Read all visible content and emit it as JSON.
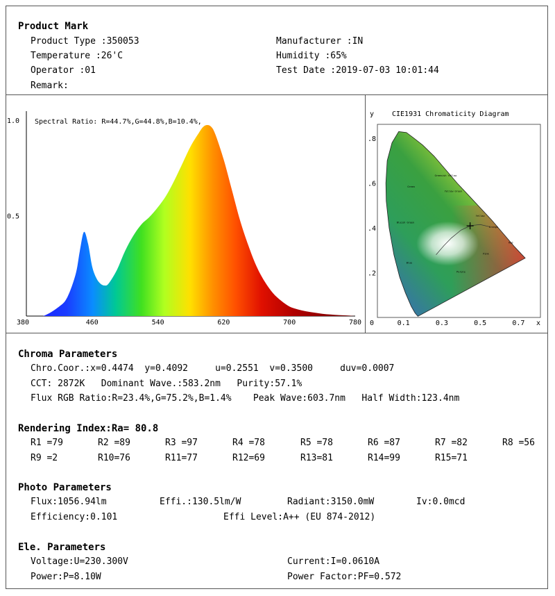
{
  "product_mark": {
    "heading": "Product Mark",
    "product_type": "Product Type :350053",
    "manufacturer": "Manufacturer :IN",
    "temperature": "Temperature :26'C",
    "humidity": "Humidity :65%",
    "operator": "Operator :01",
    "test_date": "Test Date :2019-07-03 10:01:44",
    "remark": "Remark:"
  },
  "chart_data": [
    {
      "type": "area",
      "annotation": "Spectral Ratio:  R=44.7%,G=44.8%,B=10.4%,",
      "xlim": [
        380,
        780
      ],
      "ylim": [
        0,
        1.0
      ],
      "x_ticks": [
        "380",
        "460",
        "540",
        "620",
        "700",
        "780"
      ],
      "y_ticks": [
        "1.0",
        "0.5"
      ],
      "x": [
        380,
        400,
        420,
        430,
        440,
        445,
        450,
        455,
        460,
        465,
        470,
        475,
        480,
        490,
        500,
        510,
        520,
        530,
        540,
        550,
        560,
        570,
        580,
        590,
        595,
        600,
        605,
        610,
        620,
        630,
        640,
        650,
        660,
        670,
        680,
        690,
        700,
        710,
        720,
        730,
        740,
        750,
        760,
        770,
        780
      ],
      "y": [
        0.0,
        0.0,
        0.05,
        0.1,
        0.22,
        0.34,
        0.44,
        0.38,
        0.26,
        0.2,
        0.17,
        0.16,
        0.17,
        0.24,
        0.34,
        0.42,
        0.48,
        0.52,
        0.57,
        0.63,
        0.71,
        0.8,
        0.89,
        0.96,
        0.99,
        1.0,
        0.99,
        0.95,
        0.82,
        0.66,
        0.5,
        0.37,
        0.26,
        0.18,
        0.12,
        0.08,
        0.05,
        0.035,
        0.025,
        0.018,
        0.012,
        0.008,
        0.005,
        0.003,
        0.0
      ]
    },
    {
      "type": "scatter",
      "title": "CIE1931 Chromaticity Diagram",
      "ylabel": "y",
      "xlabel": "x",
      "x_ticks": [
        "0",
        "0.1",
        "0.3",
        "0.5",
        "0.7"
      ],
      "y_ticks": [
        ".8",
        ".6",
        ".4",
        ".2"
      ],
      "xlim": [
        0,
        0.8
      ],
      "ylim": [
        0,
        0.85
      ],
      "point": {
        "x": 0.4474,
        "y": 0.4092
      },
      "region_labels": [
        "Greenish Yellow",
        "Yellow Green",
        "Yellow",
        "Orange",
        "Red",
        "Pink",
        "Purple",
        "Bluish Green",
        "Blue",
        "Green"
      ]
    }
  ],
  "chroma": {
    "heading": "Chroma Parameters",
    "line1": "Chro.Coor.:x=0.4474  y=0.4092     u=0.2551  v=0.3500     duv=0.0007",
    "line2": "CCT: 2872K   Dominant Wave.:583.2nm   Purity:57.1%",
    "line3": "Flux RGB Ratio:R=23.4%,G=75.2%,B=1.4%    Peak Wave:603.7nm   Half Width:123.4nm"
  },
  "rendering": {
    "heading": "Rendering Index:Ra= 80.8",
    "row1": [
      "R1 =79",
      "R2 =89",
      "R3 =97",
      "R4 =78",
      "R5 =78",
      "R6 =87",
      "R7 =82",
      "R8 =56"
    ],
    "row2": [
      "R9 =2",
      "R10=76",
      "R11=77",
      "R12=69",
      "R13=81",
      "R14=99",
      "R15=71"
    ]
  },
  "photo": {
    "heading": "Photo Parameters",
    "flux": "Flux:1056.94lm",
    "effi": "Effi.:130.5lm/W",
    "radiant": "Radiant:3150.0mW",
    "iv": "Iv:0.0mcd",
    "efficiency": "Efficiency:0.101",
    "effi_level": "Effi Level:A++ (EU 874-2012)"
  },
  "ele": {
    "heading": "Ele. Parameters",
    "voltage": "Voltage:U=230.300V",
    "current": "Current:I=0.0610A",
    "power": "Power:P=8.10W",
    "pf": "Power Factor:PF=0.572"
  }
}
